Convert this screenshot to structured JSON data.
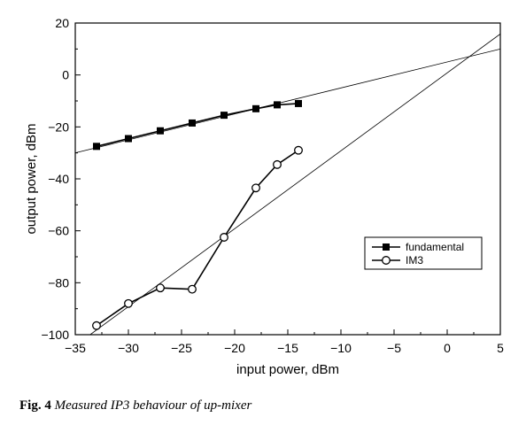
{
  "chart_data": {
    "type": "line",
    "title": "",
    "xlabel": "input power, dBm",
    "ylabel": "output power, dBm",
    "xlim": [
      -35,
      5
    ],
    "ylim": [
      -100,
      20
    ],
    "xticks": [
      -35,
      -30,
      -25,
      -20,
      -15,
      -10,
      -5,
      0,
      5
    ],
    "xtick_labels": [
      "−35",
      "−30",
      "−25",
      "−20",
      "−15",
      "−10",
      "−5",
      "0",
      "5"
    ],
    "yticks": [
      -100,
      -80,
      -60,
      -40,
      -20,
      0,
      20
    ],
    "ytick_labels": [
      "−100",
      "−80",
      "−60",
      "−40",
      "−20",
      "0",
      "20"
    ],
    "grid": false,
    "legend_position": "lower-right",
    "series": [
      {
        "name": "fundamental",
        "marker": "filled-square",
        "x": [
          -33,
          -30,
          -27,
          -24,
          -21,
          -18,
          -16,
          -14
        ],
        "y": [
          -27.5,
          -24.5,
          -21.5,
          -18.5,
          -15.5,
          -13,
          -11.5,
          -11
        ]
      },
      {
        "name": "IM3",
        "marker": "open-circle",
        "x": [
          -33,
          -30,
          -27,
          -24,
          -21,
          -18,
          -16,
          -14
        ],
        "y": [
          -96.5,
          -88,
          -82,
          -82.5,
          -62.5,
          -43.5,
          -34.5,
          -29
        ]
      }
    ],
    "extrapolation_lines": [
      {
        "slope": 1,
        "from": [
          -35,
          -30
        ],
        "to": [
          5,
          10
        ]
      },
      {
        "slope": 3,
        "from": [
          -33.6,
          -100
        ],
        "to": [
          5,
          15.8
        ]
      }
    ]
  },
  "caption": {
    "label": "Fig. 4",
    "text": "Measured IP3 behaviour of up-mixer"
  }
}
